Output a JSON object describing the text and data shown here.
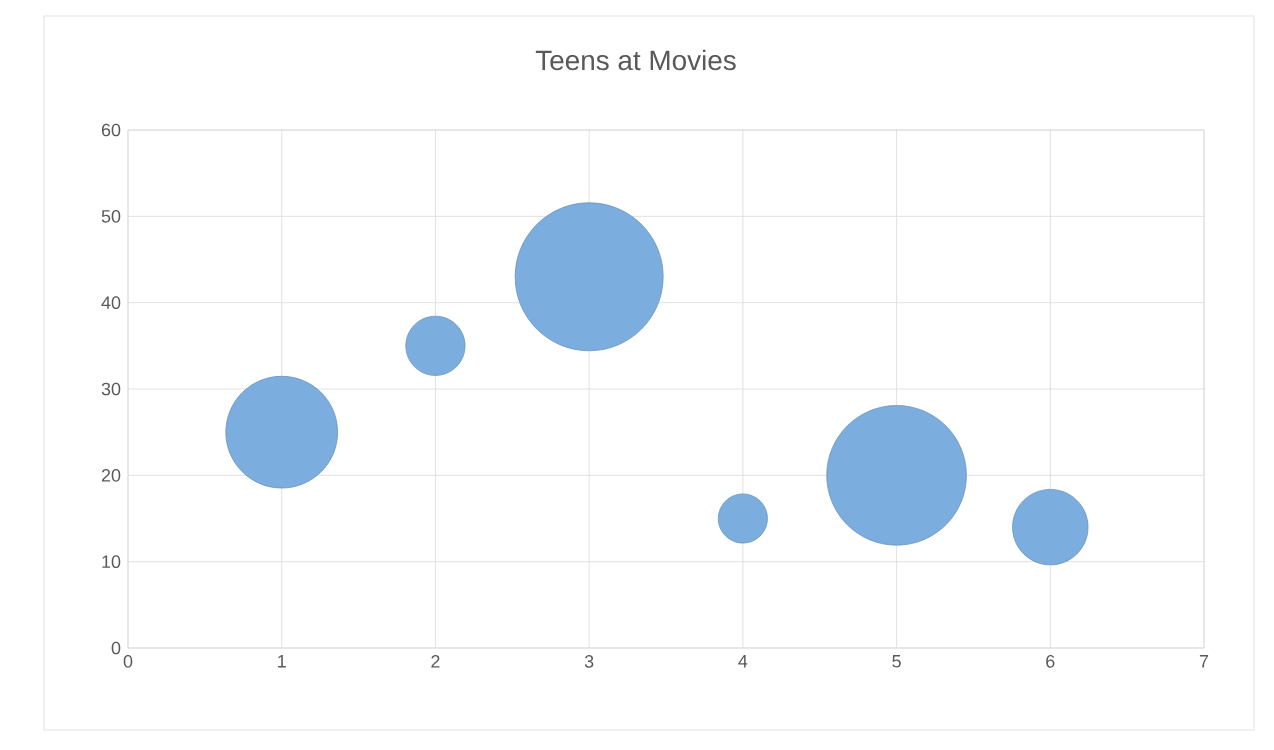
{
  "chart_data": {
    "type": "bubble",
    "title": "Teens at Movies",
    "x": [
      1,
      2,
      3,
      4,
      5,
      6
    ],
    "values": [
      25,
      35,
      43,
      15,
      20,
      14
    ],
    "sizes": [
      0.57,
      0.16,
      1,
      0.11,
      0.89,
      0.26
    ],
    "color": "#7badde",
    "xlim": [
      0,
      7
    ],
    "xticks": [
      0,
      1,
      2,
      3,
      4,
      5,
      6,
      7
    ],
    "ylim": [
      0,
      60
    ],
    "yticks": [
      0,
      10,
      20,
      30,
      40,
      50,
      60
    ],
    "grid": true
  }
}
